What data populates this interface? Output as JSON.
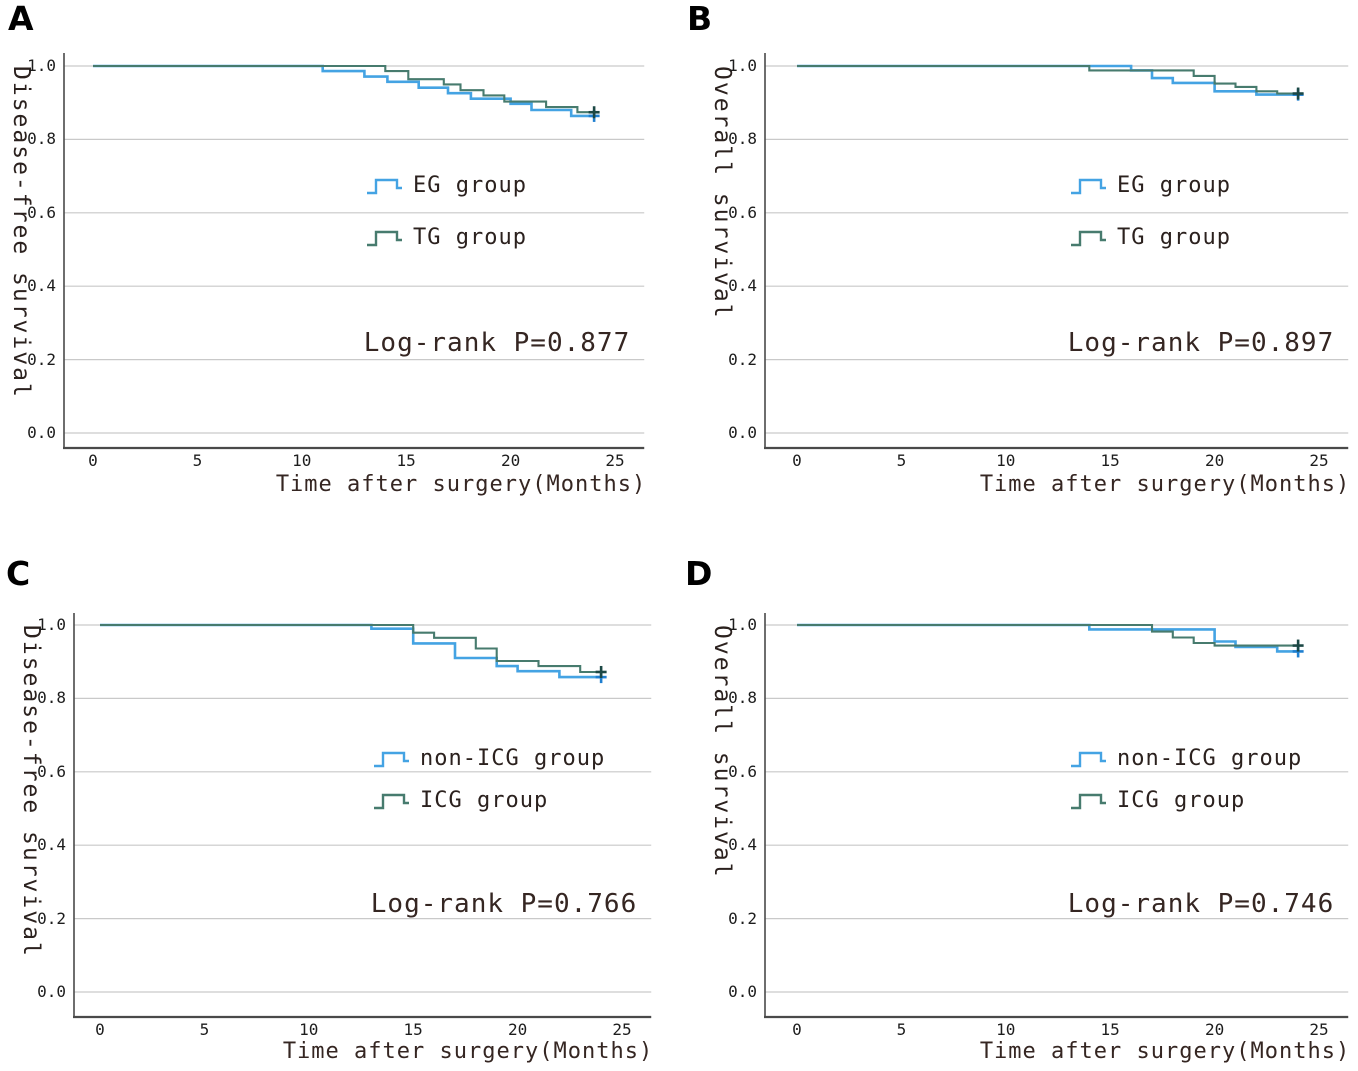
{
  "figure": {
    "panels": [
      {
        "label": "A",
        "y_axis_title": "Disease-free survival",
        "x_axis_title": "Time after surgery(Months)",
        "p_value_text": "Log-rank P=0.877",
        "y_ticks": [
          "1.0",
          "0.8",
          "0.6",
          "0.4",
          "0.2",
          "0.0"
        ],
        "x_ticks": [
          "0",
          "5",
          "10",
          "15",
          "20",
          "25"
        ],
        "legend": [
          {
            "label": "EG group",
            "color": "#44a3e3"
          },
          {
            "label": "TG group",
            "color": "#477b6e"
          }
        ]
      },
      {
        "label": "B",
        "y_axis_title": "Overall survival",
        "x_axis_title": "Time after surgery(Months)",
        "p_value_text": "Log-rank P=0.897",
        "y_ticks": [
          "1.0",
          "0.8",
          "0.6",
          "0.4",
          "0.2",
          "0.0"
        ],
        "x_ticks": [
          "0",
          "5",
          "10",
          "15",
          "20",
          "25"
        ],
        "legend": [
          {
            "label": "EG group",
            "color": "#44a3e3"
          },
          {
            "label": "TG group",
            "color": "#477b6e"
          }
        ]
      },
      {
        "label": "C",
        "y_axis_title": "Disease-free survival",
        "x_axis_title": "Time after surgery(Months)",
        "p_value_text": "Log-rank P=0.766",
        "y_ticks": [
          "1.0",
          "0.8",
          "0.6",
          "0.4",
          "0.2",
          "0.0"
        ],
        "x_ticks": [
          "0",
          "5",
          "10",
          "15",
          "20",
          "25"
        ],
        "legend": [
          {
            "label": "non-ICG group",
            "color": "#44a3e3"
          },
          {
            "label": "ICG group",
            "color": "#477b6e"
          }
        ]
      },
      {
        "label": "D",
        "y_axis_title": "Overall survival",
        "x_axis_title": "Time after surgery(Months)",
        "p_value_text": "Log-rank P=0.746",
        "y_ticks": [
          "1.0",
          "0.8",
          "0.6",
          "0.4",
          "0.2",
          "0.0"
        ],
        "x_ticks": [
          "0",
          "5",
          "10",
          "15",
          "20",
          "25"
        ],
        "legend": [
          {
            "label": "non-ICG group",
            "color": "#44a3e3"
          },
          {
            "label": "ICG group",
            "color": "#477b6e"
          }
        ]
      }
    ]
  },
  "chart_data": [
    {
      "panel": "A",
      "type": "line",
      "subtype": "kaplan-meier-step",
      "ylabel": "Disease-free survival",
      "xlabel": "Time after surgery(Months)",
      "annotation": "Log-rank P=0.877",
      "xlim": [
        0,
        26.4
      ],
      "ylim": [
        -0.045,
        1.045
      ],
      "xticks": [
        0,
        5,
        10,
        15,
        20,
        25
      ],
      "yticks": [
        0.0,
        0.2,
        0.4,
        0.6,
        0.8,
        1.0
      ],
      "grid": "horizontal",
      "legend_position": "center-right",
      "series": [
        {
          "name": "EG group",
          "color": "#44a3e3",
          "censor_color": "#1f7fd0",
          "line_width": 2.6,
          "start": [
            0,
            1.0
          ],
          "end_x": 24,
          "drops": [
            [
              11,
              0.986
            ],
            [
              13,
              0.971
            ],
            [
              14.1,
              0.957
            ],
            [
              15.6,
              0.941
            ],
            [
              17,
              0.926
            ],
            [
              18.1,
              0.911
            ],
            [
              20,
              0.897
            ],
            [
              21,
              0.88
            ],
            [
              22.9,
              0.864
            ]
          ],
          "censors": [
            [
              24,
              0.864
            ]
          ]
        },
        {
          "name": "TG group",
          "color": "#477b6e",
          "censor_color": "#1c4845",
          "line_width": 2.1,
          "start": [
            0,
            1.0
          ],
          "end_x": 24,
          "drops": [
            [
              14,
              0.986
            ],
            [
              15.1,
              0.964
            ],
            [
              16.8,
              0.95
            ],
            [
              17.6,
              0.934
            ],
            [
              18.7,
              0.92
            ],
            [
              19.7,
              0.903
            ],
            [
              21.7,
              0.888
            ],
            [
              23.2,
              0.874
            ]
          ],
          "censors": [
            [
              24,
              0.874
            ]
          ]
        }
      ]
    },
    {
      "panel": "B",
      "type": "line",
      "subtype": "kaplan-meier-step",
      "ylabel": "Overall survival",
      "xlabel": "Time after surgery(Months)",
      "annotation": "Log-rank P=0.897",
      "xlim": [
        0,
        26.4
      ],
      "ylim": [
        -0.045,
        1.045
      ],
      "xticks": [
        0,
        5,
        10,
        15,
        20,
        25
      ],
      "yticks": [
        0.0,
        0.2,
        0.4,
        0.6,
        0.8,
        1.0
      ],
      "grid": "horizontal",
      "legend_position": "center-right",
      "series": [
        {
          "name": "EG group",
          "color": "#44a3e3",
          "censor_color": "#1f7fd0",
          "line_width": 2.6,
          "start": [
            0,
            1.0
          ],
          "end_x": 24,
          "drops": [
            [
              16,
              0.988
            ],
            [
              17,
              0.967
            ],
            [
              18,
              0.954
            ],
            [
              20,
              0.931
            ],
            [
              22,
              0.922
            ]
          ],
          "censors": [
            [
              24,
              0.922
            ]
          ]
        },
        {
          "name": "TG group",
          "color": "#477b6e",
          "censor_color": "#1c4845",
          "line_width": 2.1,
          "start": [
            0,
            1.0
          ],
          "end_x": 24,
          "drops": [
            [
              14,
              0.988
            ],
            [
              19,
              0.973
            ],
            [
              20,
              0.952
            ],
            [
              21,
              0.943
            ],
            [
              22,
              0.931
            ],
            [
              23,
              0.925
            ]
          ],
          "censors": [
            [
              24,
              0.925
            ]
          ]
        }
      ]
    },
    {
      "panel": "C",
      "type": "line",
      "subtype": "kaplan-meier-step",
      "ylabel": "Disease-free survival",
      "xlabel": "Time after surgery(Months)",
      "annotation": "Log-rank P=0.766",
      "xlim": [
        0,
        26.4
      ],
      "ylim": [
        -0.045,
        1.045
      ],
      "xticks": [
        0,
        5,
        10,
        15,
        20,
        25
      ],
      "yticks": [
        0.0,
        0.2,
        0.4,
        0.6,
        0.8,
        1.0
      ],
      "grid": "horizontal",
      "legend_position": "center-right",
      "series": [
        {
          "name": "non-ICG group",
          "color": "#44a3e3",
          "censor_color": "#1f7fd0",
          "line_width": 2.6,
          "start": [
            0,
            1.0
          ],
          "end_x": 24,
          "drops": [
            [
              13,
              0.99
            ],
            [
              15,
              0.95
            ],
            [
              17,
              0.91
            ],
            [
              19,
              0.888
            ],
            [
              20,
              0.874
            ],
            [
              22,
              0.858
            ]
          ],
          "censors": [
            [
              24,
              0.858
            ]
          ]
        },
        {
          "name": "ICG group",
          "color": "#477b6e",
          "censor_color": "#1c4845",
          "line_width": 2.1,
          "start": [
            0,
            1.0
          ],
          "end_x": 24,
          "drops": [
            [
              15,
              0.979
            ],
            [
              16,
              0.965
            ],
            [
              18,
              0.936
            ],
            [
              19,
              0.902
            ],
            [
              21,
              0.888
            ],
            [
              23,
              0.872
            ]
          ],
          "censors": [
            [
              24,
              0.872
            ]
          ]
        }
      ]
    },
    {
      "panel": "D",
      "type": "line",
      "subtype": "kaplan-meier-step",
      "ylabel": "Overall survival",
      "xlabel": "Time after surgery(Months)",
      "annotation": "Log-rank P=0.746",
      "xlim": [
        0,
        26.4
      ],
      "ylim": [
        -0.045,
        1.045
      ],
      "xticks": [
        0,
        5,
        10,
        15,
        20,
        25
      ],
      "yticks": [
        0.0,
        0.2,
        0.4,
        0.6,
        0.8,
        1.0
      ],
      "grid": "horizontal",
      "legend_position": "center-right",
      "series": [
        {
          "name": "non-ICG group",
          "color": "#44a3e3",
          "censor_color": "#1f7fd0",
          "line_width": 2.6,
          "start": [
            0,
            1.0
          ],
          "end_x": 24,
          "drops": [
            [
              14,
              0.988
            ],
            [
              20,
              0.955
            ],
            [
              21,
              0.94
            ],
            [
              23,
              0.928
            ]
          ],
          "censors": [
            [
              24,
              0.928
            ]
          ]
        },
        {
          "name": "ICG group",
          "color": "#477b6e",
          "censor_color": "#1c4845",
          "line_width": 2.1,
          "start": [
            0,
            1.0
          ],
          "end_x": 24,
          "drops": [
            [
              17,
              0.982
            ],
            [
              18,
              0.966
            ],
            [
              19,
              0.951
            ],
            [
              20,
              0.944
            ]
          ],
          "censors": [
            [
              24,
              0.944
            ]
          ]
        }
      ]
    }
  ],
  "style": {
    "grid_color": "#c9c9c9",
    "axis_color": "#4a4a4a",
    "background": "#ffffff"
  }
}
